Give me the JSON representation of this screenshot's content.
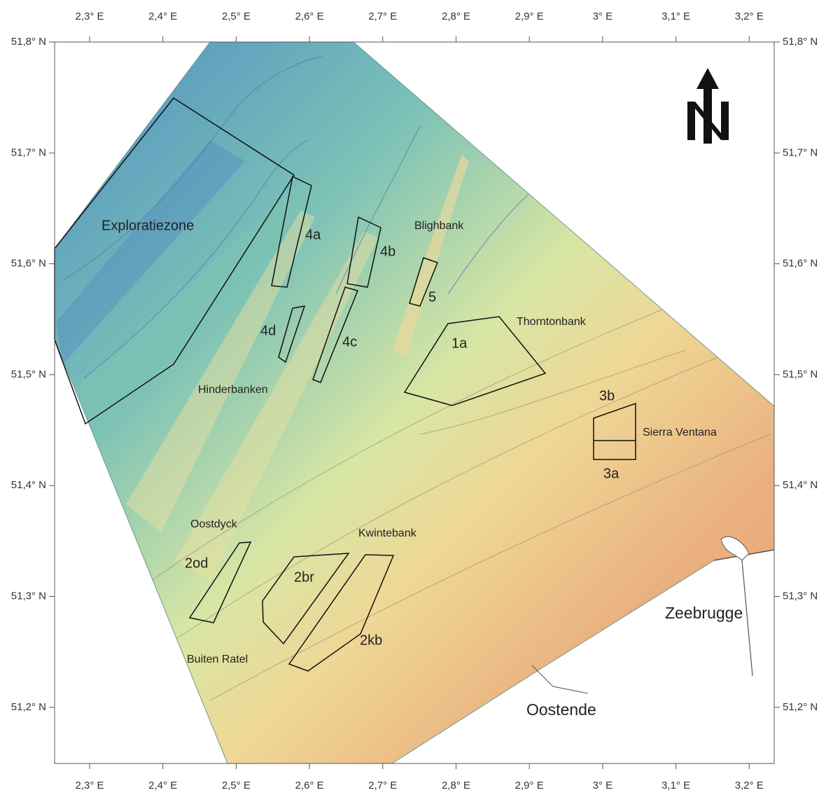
{
  "map": {
    "lon_ticks": [
      "2,3° E",
      "2,4° E",
      "2,5° E",
      "2,6° E",
      "2,7° E",
      "2,8° E",
      "2,9° E",
      "3° E",
      "3,1° E",
      "3,2° E"
    ],
    "lat_ticks": [
      "51,8° N",
      "51,7° N",
      "51,6° N",
      "51,5° N",
      "51,4° N",
      "51,3° N",
      "51,2° N"
    ],
    "labels": [
      "Exploratiezone",
      "4a",
      "4b",
      "Blighbank",
      "5",
      "4d",
      "4c",
      "1a",
      "Thorntonbank",
      "Hinderbanken",
      "3b",
      "Sierra Ventana",
      "3a",
      "Oostdyck",
      "Kwintebank",
      "2od",
      "2br",
      "2kb",
      "Buiten Ratel",
      "Zeebrugge",
      "Oostende"
    ]
  }
}
